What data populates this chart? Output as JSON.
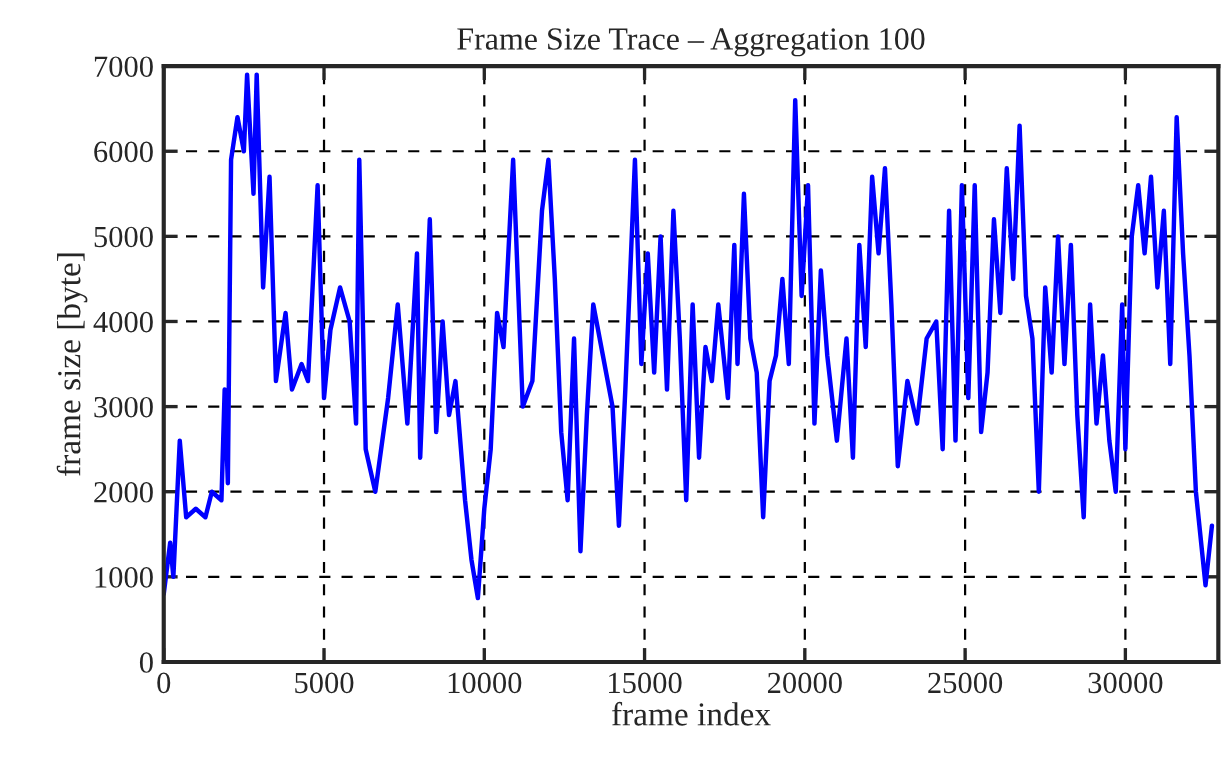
{
  "chart_data": {
    "type": "line",
    "title": "Frame Size Trace – Aggregation 100",
    "xlabel": "frame index",
    "ylabel": "frame size [byte]",
    "x": [
      0,
      200,
      300,
      500,
      700,
      1000,
      1300,
      1500,
      1800,
      1900,
      2000,
      2100,
      2300,
      2500,
      2600,
      2800,
      2900,
      3100,
      3300,
      3500,
      3800,
      4000,
      4300,
      4500,
      4800,
      5000,
      5200,
      5500,
      5800,
      6000,
      6100,
      6300,
      6600,
      7000,
      7300,
      7600,
      7900,
      8000,
      8300,
      8500,
      8700,
      8900,
      9100,
      9400,
      9600,
      9800,
      10000,
      10200,
      10400,
      10600,
      10900,
      11200,
      11500,
      11800,
      12000,
      12200,
      12400,
      12600,
      12800,
      13000,
      13200,
      13400,
      13700,
      14000,
      14200,
      14400,
      14700,
      14900,
      15100,
      15300,
      15500,
      15700,
      15900,
      16100,
      16300,
      16500,
      16700,
      16900,
      17100,
      17300,
      17600,
      17800,
      17900,
      18100,
      18300,
      18500,
      18700,
      18900,
      19100,
      19300,
      19500,
      19700,
      19900,
      20100,
      20300,
      20500,
      20700,
      21000,
      21300,
      21500,
      21700,
      21900,
      22100,
      22300,
      22500,
      22700,
      22900,
      23200,
      23500,
      23800,
      24100,
      24300,
      24500,
      24700,
      24900,
      25100,
      25300,
      25500,
      25700,
      25900,
      26100,
      26300,
      26500,
      26700,
      26900,
      27100,
      27300,
      27500,
      27700,
      27900,
      28100,
      28300,
      28500,
      28700,
      28900,
      29100,
      29300,
      29500,
      29700,
      29900,
      30000,
      30200,
      30400,
      30600,
      30800,
      31000,
      31200,
      31400,
      31600,
      31800,
      32000,
      32200,
      32500,
      32700
    ],
    "series": [
      {
        "color": "#0000ff",
        "values": [
          800,
          1400,
          1000,
          2600,
          1700,
          1800,
          1700,
          2000,
          1900,
          3200,
          2100,
          5900,
          6400,
          6000,
          6900,
          5500,
          6900,
          4400,
          5700,
          3300,
          4100,
          3200,
          3500,
          3300,
          5600,
          3100,
          3900,
          4400,
          4000,
          2800,
          5900,
          2500,
          2000,
          3100,
          4200,
          2800,
          4800,
          2400,
          5200,
          2700,
          4000,
          2900,
          3300,
          1900,
          1200,
          750,
          1800,
          2500,
          4100,
          3700,
          5900,
          3000,
          3300,
          5300,
          5900,
          4500,
          2700,
          1900,
          3800,
          1300,
          2900,
          4200,
          3600,
          3000,
          1600,
          3200,
          5900,
          3500,
          4800,
          3400,
          5000,
          3200,
          5300,
          3800,
          1900,
          4200,
          2400,
          3700,
          3300,
          4200,
          3100,
          4900,
          3500,
          5500,
          3800,
          3400,
          1700,
          3300,
          3600,
          4500,
          3500,
          6600,
          4300,
          5600,
          2800,
          4600,
          3600,
          2600,
          3800,
          2400,
          4900,
          3700,
          5700,
          4800,
          5800,
          4200,
          2300,
          3300,
          2800,
          3800,
          4000,
          2500,
          5300,
          2600,
          5600,
          3100,
          5600,
          2700,
          3400,
          5200,
          4100,
          5800,
          4500,
          6300,
          4300,
          3800,
          2000,
          4400,
          3400,
          5000,
          3500,
          4900,
          2900,
          1700,
          4200,
          2800,
          3600,
          2600,
          2000,
          4200,
          2500,
          5000,
          5600,
          4800,
          5700,
          4400,
          5300,
          3500,
          6400,
          4800,
          3600,
          2000,
          900,
          1600
        ]
      }
    ],
    "xlim": [
      0,
      32900
    ],
    "ylim": [
      0,
      7000
    ],
    "xticks": [
      0,
      5000,
      10000,
      15000,
      20000,
      25000,
      30000
    ],
    "yticks": [
      0,
      1000,
      2000,
      3000,
      4000,
      5000,
      6000,
      7000
    ],
    "grid": true,
    "marker": "none",
    "line_style": "solid",
    "legend": false
  }
}
